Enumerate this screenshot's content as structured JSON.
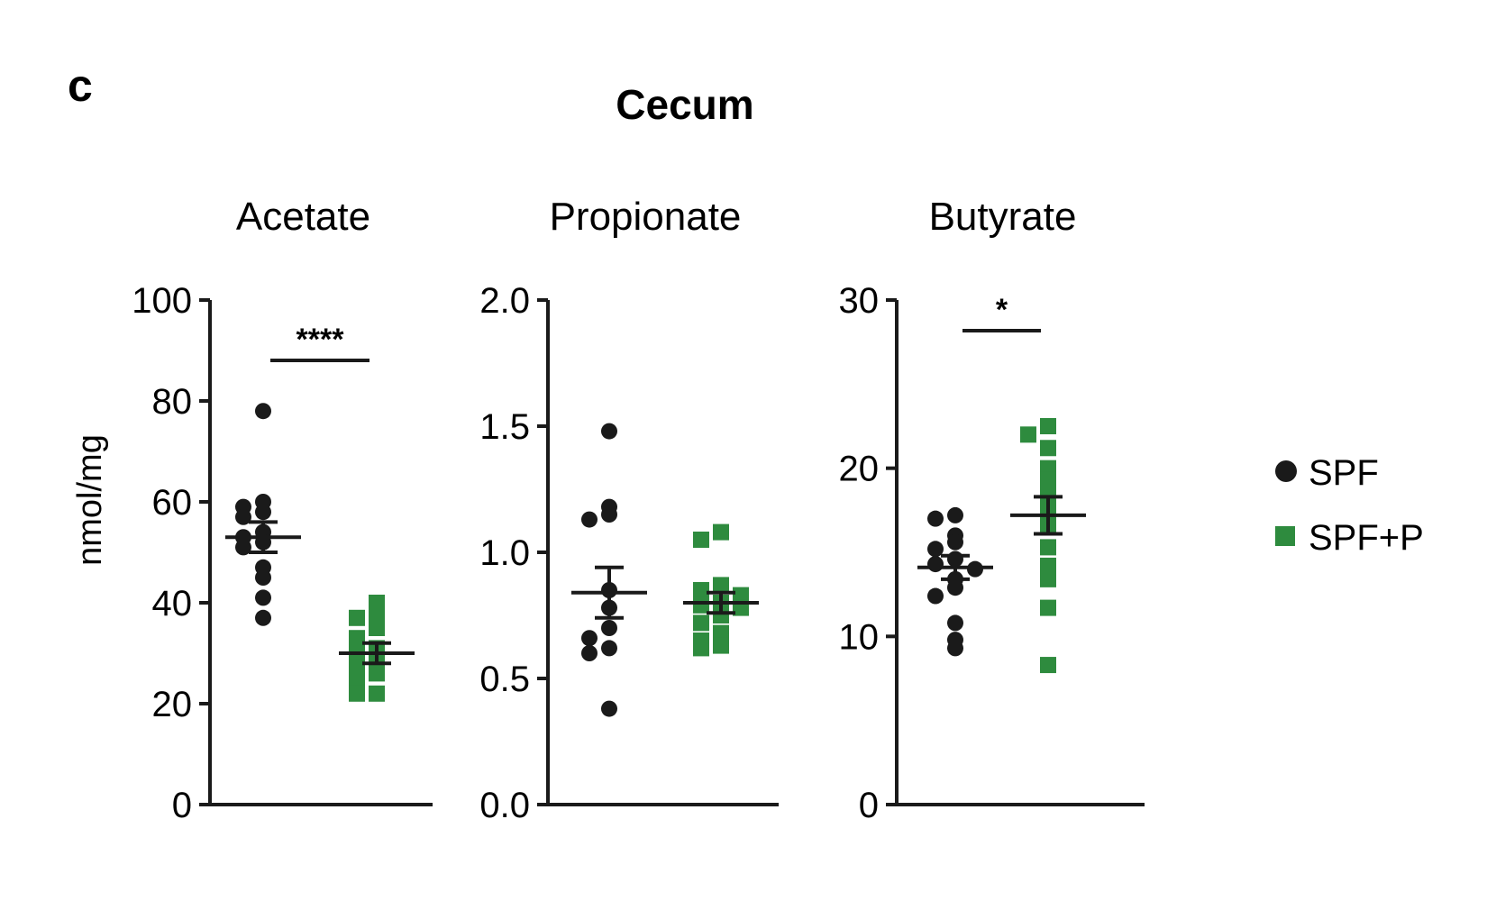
{
  "figure": {
    "panel_letter": "c",
    "title": "Cecum",
    "ylabel": "nmol/mg"
  },
  "legend": [
    {
      "label": "SPF",
      "color": "#1a1a1a",
      "marker": "circle"
    },
    {
      "label": "SPF+P",
      "color": "#2e8b3e",
      "marker": "square"
    }
  ],
  "chart_data": [
    {
      "type": "scatter",
      "title": "Acetate",
      "ylabel": "nmol/mg",
      "ylim": [
        0,
        100
      ],
      "yticks": [
        0,
        20,
        40,
        60,
        80,
        100
      ],
      "significance": "****",
      "series": [
        {
          "name": "SPF",
          "color": "#1a1a1a",
          "marker": "circle",
          "values": [
            78,
            60,
            59,
            58,
            57,
            54,
            53,
            52,
            51,
            47,
            45,
            41,
            37
          ],
          "mean": 53,
          "sem": 3
        },
        {
          "name": "SPF+P",
          "color": "#2e8b3e",
          "marker": "square",
          "values": [
            40,
            38,
            37,
            35,
            33,
            31,
            30,
            29,
            27,
            26,
            25,
            22,
            22
          ],
          "mean": 30,
          "sem": 2
        }
      ]
    },
    {
      "type": "scatter",
      "title": "Propionate",
      "ylabel": "",
      "ylim": [
        0,
        2.0
      ],
      "yticks": [
        "0.0",
        "0.5",
        "1.0",
        "1.5",
        "2.0"
      ],
      "significance": "",
      "series": [
        {
          "name": "SPF",
          "color": "#1a1a1a",
          "marker": "circle",
          "values": [
            1.48,
            1.18,
            1.15,
            1.13,
            0.85,
            0.78,
            0.7,
            0.66,
            0.62,
            0.6,
            0.38
          ],
          "mean": 0.84,
          "sem": 0.1
        },
        {
          "name": "SPF+P",
          "color": "#2e8b3e",
          "marker": "square",
          "values": [
            1.08,
            1.05,
            0.87,
            0.85,
            0.83,
            0.8,
            0.79,
            0.78,
            0.75,
            0.72,
            0.68,
            0.65,
            0.63,
            0.62
          ],
          "mean": 0.8,
          "sem": 0.04
        }
      ]
    },
    {
      "type": "scatter",
      "title": "Butyrate",
      "ylabel": "",
      "ylim": [
        0,
        30
      ],
      "yticks": [
        0,
        10,
        20,
        30
      ],
      "significance": "*",
      "series": [
        {
          "name": "SPF",
          "color": "#1a1a1a",
          "marker": "circle",
          "values": [
            17.2,
            17.0,
            16.0,
            15.6,
            15.2,
            14.6,
            14.3,
            14.0,
            13.4,
            12.9,
            12.4,
            10.8,
            9.8,
            9.3
          ],
          "mean": 14.1,
          "sem": 0.7
        },
        {
          "name": "SPF+P",
          "color": "#2e8b3e",
          "marker": "square",
          "values": [
            22.5,
            22.0,
            21.2,
            20.0,
            19.3,
            18.5,
            17.8,
            17.0,
            16.5,
            15.3,
            14.2,
            13.4,
            11.7,
            8.3
          ],
          "mean": 17.2,
          "sem": 1.1
        }
      ]
    }
  ]
}
